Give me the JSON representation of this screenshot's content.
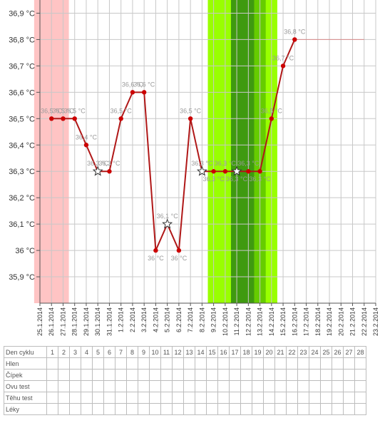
{
  "chart_data": {
    "type": "line",
    "x_dates": [
      "25.1.2014",
      "26.1.2014",
      "27.1.2014",
      "28.1.2014",
      "29.1.2014",
      "30.1.2014",
      "31.1.2014",
      "1.2.2014",
      "2.2.2014",
      "3.2.2014",
      "4.2.2014",
      "5.2.2014",
      "6.2.2014",
      "7.2.2014",
      "8.2.2014",
      "9.2.2014",
      "10.2.2014",
      "11.2.2014",
      "12.2.2014",
      "13.2.2014",
      "14.2.2014",
      "15.2.2014",
      "16.2.2014",
      "17.2.2014",
      "18.2.2014",
      "19.2.2014",
      "20.2.2014",
      "21.2.2014",
      "22.2.2014",
      "23.2.2014"
    ],
    "y_ticks": [
      "35,9 °C",
      "36 °C",
      "36,1 °C",
      "36,2 °C",
      "36,3 °C",
      "36,4 °C",
      "36,5 °C",
      "36,6 °C",
      "36,7 °C",
      "36,8 °C",
      "36,9 °C"
    ],
    "ylim": [
      35.8,
      36.95
    ],
    "points": [
      {
        "date": "26.1.2014",
        "value": 36.5,
        "label": "36,5 °C",
        "star": false
      },
      {
        "date": "27.1.2014",
        "value": 36.5,
        "label": "36,5 °C",
        "star": false
      },
      {
        "date": "28.1.2014",
        "value": 36.5,
        "label": "36,5 °C",
        "star": false
      },
      {
        "date": "29.1.2014",
        "value": 36.4,
        "label": "36,4 °C",
        "star": false
      },
      {
        "date": "30.1.2014",
        "value": 36.3,
        "label": "36,3 °C",
        "star": true
      },
      {
        "date": "31.1.2014",
        "value": 36.3,
        "label": "36,3 °C",
        "star": false
      },
      {
        "date": "1.2.2014",
        "value": 36.5,
        "label": "36,5 °C",
        "star": false
      },
      {
        "date": "2.2.2014",
        "value": 36.6,
        "label": "36,6 °C",
        "star": false
      },
      {
        "date": "3.2.2014",
        "value": 36.6,
        "label": "36,6 °C",
        "star": false
      },
      {
        "date": "4.2.2014",
        "value": 36.0,
        "label": "36 °C",
        "star": false
      },
      {
        "date": "5.2.2014",
        "value": 36.1,
        "label": "36,1 °C",
        "star": true
      },
      {
        "date": "6.2.2014",
        "value": 36.0,
        "label": "36 °C",
        "star": false
      },
      {
        "date": "7.2.2014",
        "value": 36.5,
        "label": "36,5 °C",
        "star": false
      },
      {
        "date": "8.2.2014",
        "value": 36.3,
        "label": "36,3 °C",
        "star": true
      },
      {
        "date": "9.2.2014",
        "value": 36.3,
        "label": "36,3 °C",
        "star": false
      },
      {
        "date": "10.2.2014",
        "value": 36.3,
        "label": "36,3 °C",
        "star": false
      },
      {
        "date": "11.2.2014",
        "value": 36.3,
        "label": "36,3 °C",
        "star": true
      },
      {
        "date": "12.2.2014",
        "value": 36.3,
        "label": "36,3 °C",
        "star": false
      },
      {
        "date": "13.2.2014",
        "value": 36.3,
        "label": "36,3 °C",
        "star": false
      },
      {
        "date": "14.2.2014",
        "value": 36.5,
        "label": "36,5 °C",
        "star": false
      },
      {
        "date": "15.2.2014",
        "value": 36.7,
        "label": "36,7 °C",
        "star": false
      },
      {
        "date": "16.2.2014",
        "value": 36.8,
        "label": "36,8 °C",
        "star": false
      }
    ],
    "continuation": {
      "from": "16.2.2014",
      "to": "22.2.2014",
      "value": 36.8
    },
    "bands": [
      {
        "name": "menstruation",
        "from": "25.1.2014",
        "to": "27.1.2014",
        "color": "#ffc4c4"
      },
      {
        "name": "fertile",
        "from": "9.2.2014",
        "to": "14.2.2014",
        "color": "#99ff00"
      },
      {
        "name": "fertile-mid",
        "from": "11.2.2014",
        "to": "13.2.2014",
        "color": "#66cc00"
      },
      {
        "name": "ovulation",
        "from": "11.2.2014",
        "to": "12.2.2014",
        "color": "#3f9a10"
      }
    ],
    "colors": {
      "line": "#b01818",
      "dot": "#cc0000",
      "grid": "#c8c8c8",
      "axis": "#555555"
    }
  },
  "cycle_table": {
    "header_label": "Den cyklu",
    "days": [
      "1",
      "2",
      "3",
      "4",
      "5",
      "6",
      "7",
      "8",
      "9",
      "10",
      "11",
      "12",
      "13",
      "14",
      "15",
      "16",
      "17",
      "18",
      "19",
      "20",
      "21",
      "22",
      "23",
      "24",
      "25",
      "26",
      "27",
      "28"
    ],
    "rows": [
      "Hlen",
      "Čípek",
      "Ovu test",
      "Těhu test",
      "Léky"
    ]
  }
}
